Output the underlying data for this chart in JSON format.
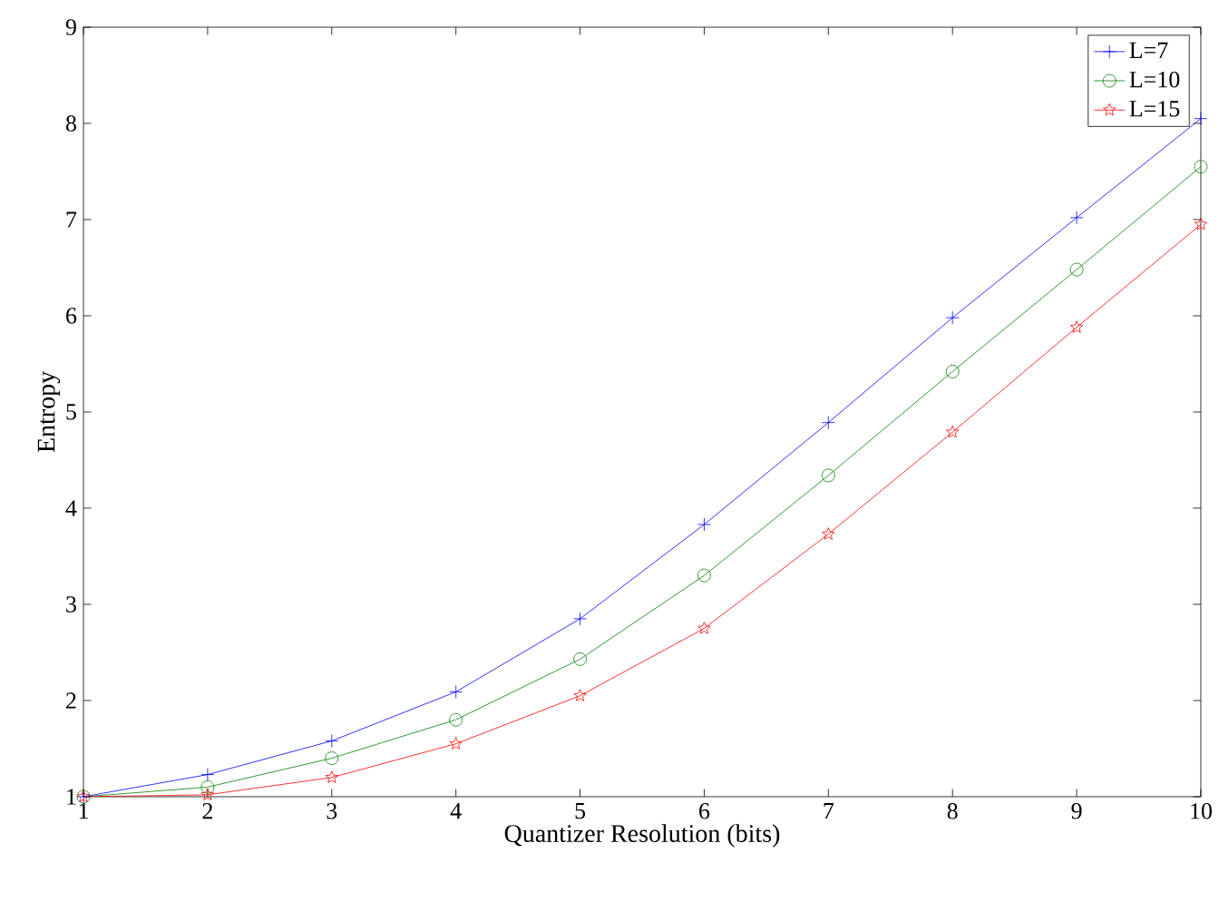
{
  "chart_data": {
    "type": "line",
    "xlabel": "Quantizer Resolution (bits)",
    "ylabel": "Entropy",
    "x": [
      1,
      2,
      3,
      4,
      5,
      6,
      7,
      8,
      9,
      10
    ],
    "series": [
      {
        "name": "L=7",
        "color": "#0000ff",
        "marker": "cross",
        "values": [
          1.0,
          1.23,
          1.58,
          2.09,
          2.85,
          3.83,
          4.89,
          5.98,
          7.02,
          8.05
        ]
      },
      {
        "name": "L=10",
        "color": "#008000",
        "marker": "circle",
        "values": [
          1.0,
          1.1,
          1.4,
          1.8,
          2.43,
          3.3,
          4.34,
          5.42,
          6.48,
          7.55
        ]
      },
      {
        "name": "L=15",
        "color": "#ff0000",
        "marker": "star",
        "values": [
          1.0,
          1.02,
          1.2,
          1.55,
          2.05,
          2.75,
          3.73,
          4.79,
          5.88,
          6.95
        ]
      }
    ],
    "xlim": [
      1,
      10
    ],
    "ylim": [
      1,
      9
    ],
    "xticks": [
      1,
      2,
      3,
      4,
      5,
      6,
      7,
      8,
      9,
      10
    ],
    "yticks": [
      1,
      2,
      3,
      4,
      5,
      6,
      7,
      8,
      9
    ],
    "grid": false,
    "legend": "top right",
    "line_style": "solid"
  }
}
